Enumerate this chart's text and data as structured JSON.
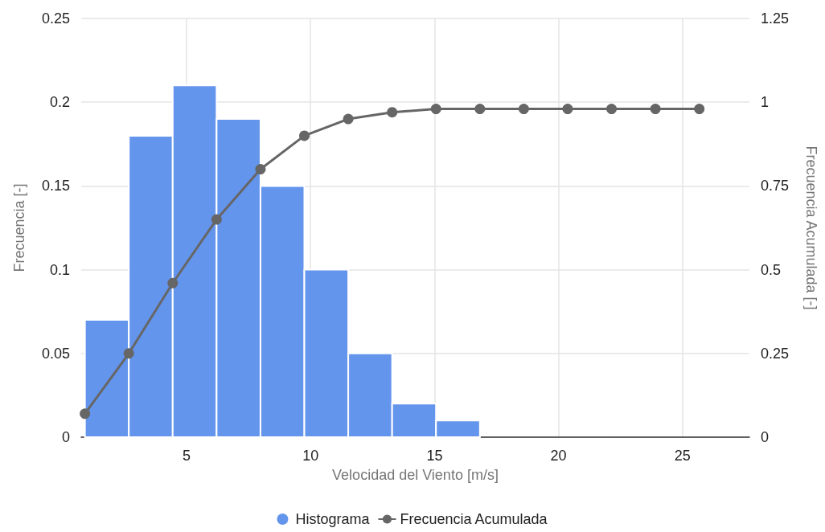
{
  "chart_data": {
    "type": "histogram",
    "xlabel": "Velocidad del Viento [m/s]",
    "ylabel": "Frecuencia [-]",
    "y2label": "Frecuencia Acumulada [-]",
    "xlim": [
      0.75,
      27.7
    ],
    "xticks": [
      5,
      10,
      15,
      20,
      25
    ],
    "ylim": [
      0,
      0.25
    ],
    "yticks": [
      0,
      0.05,
      0.1,
      0.15,
      0.2,
      0.25
    ],
    "y2lim": [
      0,
      1.25
    ],
    "y2ticks": [
      0,
      0.25,
      0.5,
      0.75,
      1,
      1.25
    ],
    "grid": true,
    "legend": "bottom",
    "marker": "circle",
    "line_style": "solid",
    "series": [
      {
        "name": "Histograma",
        "color": "#6495ed",
        "bins": [
          0.9,
          2.67,
          4.44,
          6.21,
          7.98,
          9.75,
          11.52,
          13.29,
          15.06,
          16.83
        ],
        "values": [
          0.07,
          0.18,
          0.21,
          0.19,
          0.15,
          0.1,
          0.05,
          0.02,
          0.01
        ]
      },
      {
        "type": "line",
        "name": "Frecuencia Acumulada",
        "color": "#666666",
        "axis": "y2",
        "x": [
          0.9,
          2.67,
          4.44,
          6.21,
          7.98,
          9.75,
          11.52,
          13.29,
          15.06,
          16.83,
          18.6,
          20.37,
          22.14,
          23.91,
          25.68
        ],
        "values": [
          0.07,
          0.25,
          0.46,
          0.65,
          0.8,
          0.9,
          0.95,
          0.97,
          0.98,
          0.98,
          0.98,
          0.98,
          0.98,
          0.98,
          0.98
        ]
      }
    ]
  }
}
